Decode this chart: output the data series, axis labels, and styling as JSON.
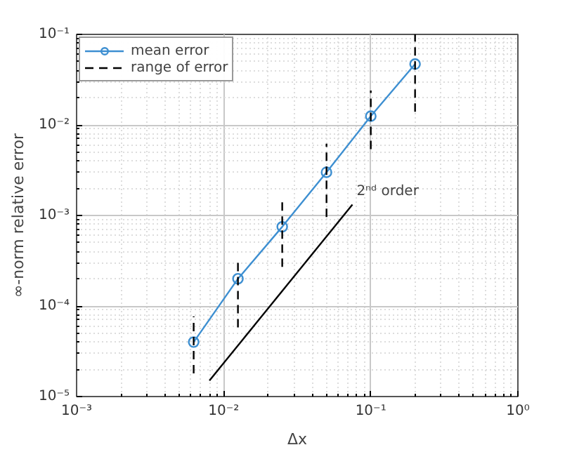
{
  "chart_data": {
    "type": "line",
    "xlabel": "Δx",
    "ylabel": "∞-norm relative error",
    "log": "xy",
    "grid": true,
    "legend": "top left",
    "xlim": [
      0.001,
      1
    ],
    "ylim": [
      1e-05,
      0.1
    ],
    "xticks": [
      {
        "value": 0.001,
        "label": "10⁻³"
      },
      {
        "value": 0.01,
        "label": "10⁻²"
      },
      {
        "value": 0.1,
        "label": "10⁻¹"
      },
      {
        "value": 1,
        "label": "10⁰"
      }
    ],
    "yticks": [
      {
        "value": 1e-05,
        "label": "10⁻⁵"
      },
      {
        "value": 0.0001,
        "label": "10⁻⁴"
      },
      {
        "value": 0.001,
        "label": "10⁻³"
      },
      {
        "value": 0.01,
        "label": "10⁻²"
      },
      {
        "value": 0.1,
        "label": "10⁻¹"
      }
    ],
    "x": [
      0.00625,
      0.0125,
      0.025,
      0.05,
      0.1,
      0.2
    ],
    "series": [
      {
        "name": "mean error",
        "color": "#3d8fd1",
        "marker": "circle",
        "line_style": "solid",
        "values": [
          4e-05,
          0.0002,
          0.00075,
          0.003,
          0.0125,
          0.047
        ]
      },
      {
        "name": "range of error",
        "color": "#000000",
        "marker": "none",
        "line_style": "dashed",
        "x": [
          0.00625,
          0.00625
        ],
        "values": [
          1.8e-05,
          7.7e-05
        ]
      },
      {
        "color": "#000000",
        "marker": "none",
        "line_style": "dashed",
        "x": [
          0.0125,
          0.0125
        ],
        "values": [
          5.8e-05,
          0.00031
        ]
      },
      {
        "color": "#000000",
        "marker": "none",
        "line_style": "dashed",
        "x": [
          0.025,
          0.025
        ],
        "values": [
          0.00027,
          0.0014
        ]
      },
      {
        "color": "#000000",
        "marker": "none",
        "line_style": "dashed",
        "x": [
          0.05,
          0.05
        ],
        "values": [
          0.00096,
          0.0062
        ]
      },
      {
        "color": "#000000",
        "marker": "none",
        "line_style": "dashed",
        "x": [
          0.1,
          0.1
        ],
        "values": [
          0.0054,
          0.024
        ]
      },
      {
        "color": "#000000",
        "marker": "none",
        "line_style": "dashed",
        "x": [
          0.2,
          0.2
        ],
        "values": [
          0.014,
          0.1
        ]
      },
      {
        "color": "#000000",
        "marker": "none",
        "line_style": "solid",
        "x": [
          0.008,
          0.075
        ],
        "values": [
          1.5e-05,
          0.00132
        ]
      }
    ],
    "annotations": [
      {
        "text": "2ⁿᵈ order",
        "x": 0.08,
        "y": 0.0015
      }
    ]
  }
}
